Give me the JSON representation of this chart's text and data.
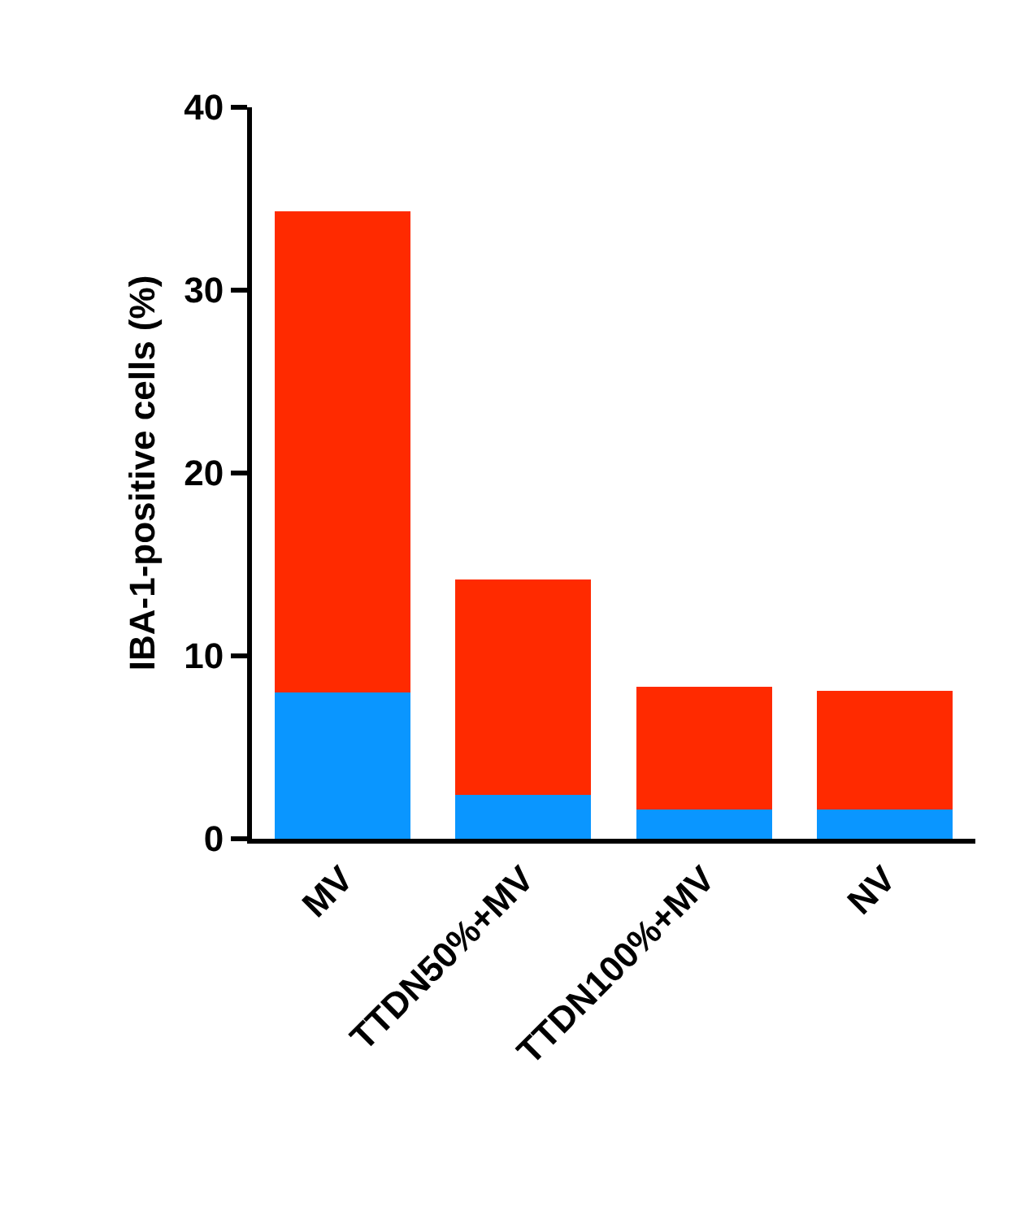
{
  "chart_data": {
    "type": "bar",
    "stacked": true,
    "ylabel": "IBA-1-positive cells (%)",
    "categories": [
      "MV",
      "TTDN50%+MV",
      "TTDN100%+MV",
      "NV"
    ],
    "series": [
      {
        "color": "#0a96ff",
        "values": [
          8.0,
          2.4,
          1.6,
          1.6
        ]
      },
      {
        "color": "#ff2a00",
        "values": [
          26.3,
          11.8,
          6.7,
          6.5
        ]
      }
    ],
    "ylim": [
      0,
      40
    ],
    "yticks": [
      0,
      10,
      20,
      30,
      40
    ],
    "grid": false
  }
}
